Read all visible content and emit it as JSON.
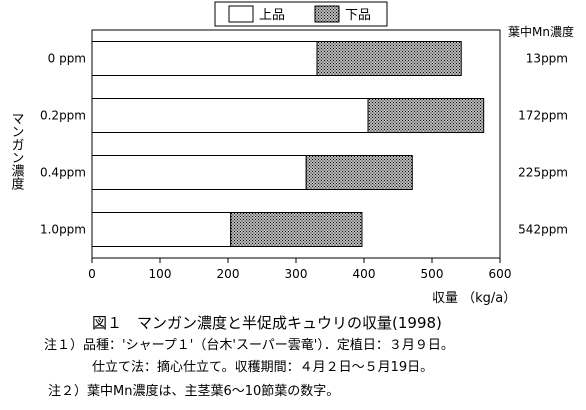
{
  "chart_data": {
    "type": "bar",
    "orientation": "horizontal",
    "stacked": true,
    "categories": [
      "0  ppm",
      "0.2ppm",
      "0.4ppm",
      "1.0ppm"
    ],
    "series": [
      {
        "name": "上品",
        "values": [
          331,
          406,
          315,
          204
        ],
        "color": "#ffffff"
      },
      {
        "name": "下品",
        "values": [
          212,
          170,
          156,
          193
        ],
        "color": "#555555"
      }
    ],
    "right_values": [
      "13ppm",
      "172ppm",
      "225ppm",
      "542ppm"
    ],
    "right_header": "葉中Mn濃度",
    "ylabel": "マンガン濃度",
    "xlabel": "収量 （kg/a）",
    "xlim": [
      0,
      600
    ],
    "xticks": [
      0,
      100,
      200,
      300,
      400,
      500,
      600
    ],
    "legend_position": "top"
  },
  "captions": {
    "title": "図１　マンガン濃度と半促成キュウリの収量(1998)",
    "note1_line1": "注１）品種：'シャープ１'（台木'スーパー雲竜'）．定植日：３月９日。",
    "note1_line2": "仕立て法：摘心仕立て。収穫期間：４月２日～５月19日。",
    "note2": "注２）葉中Mn濃度は、主茎葉6～10節葉の数字。"
  }
}
